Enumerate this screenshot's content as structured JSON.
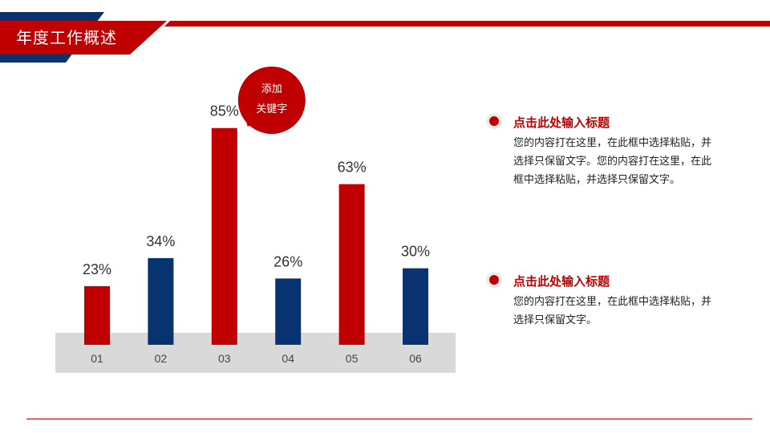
{
  "header": {
    "title": "年度工作概述"
  },
  "chart_data": {
    "type": "bar",
    "categories": [
      "01",
      "02",
      "03",
      "04",
      "05",
      "06"
    ],
    "values": [
      23,
      34,
      85,
      26,
      63,
      30
    ],
    "value_labels": [
      "23%",
      "34%",
      "85%",
      "26%",
      "63%",
      "30%"
    ],
    "bar_colors": [
      "#c00000",
      "#083270",
      "#c00000",
      "#083270",
      "#c00000",
      "#083270"
    ],
    "ylim": [
      0,
      100
    ],
    "grid": false,
    "callout": {
      "line1": "添加",
      "line2": "关键字",
      "attached_to": "03"
    }
  },
  "info": [
    {
      "title": "点击此处输入标题",
      "body": "您的内容打在这里，在此框中选择粘贴，并选择只保留文字。您的内容打在这里，在此框中选择粘贴，并选择只保留文字。"
    },
    {
      "title": "点击此处输入标题",
      "body": "您的内容打在这里，在此框中选择粘贴，并选择只保留文字。"
    }
  ],
  "colors": {
    "red": "#c00000",
    "navy": "#083270",
    "base": "#d9d9d9"
  }
}
